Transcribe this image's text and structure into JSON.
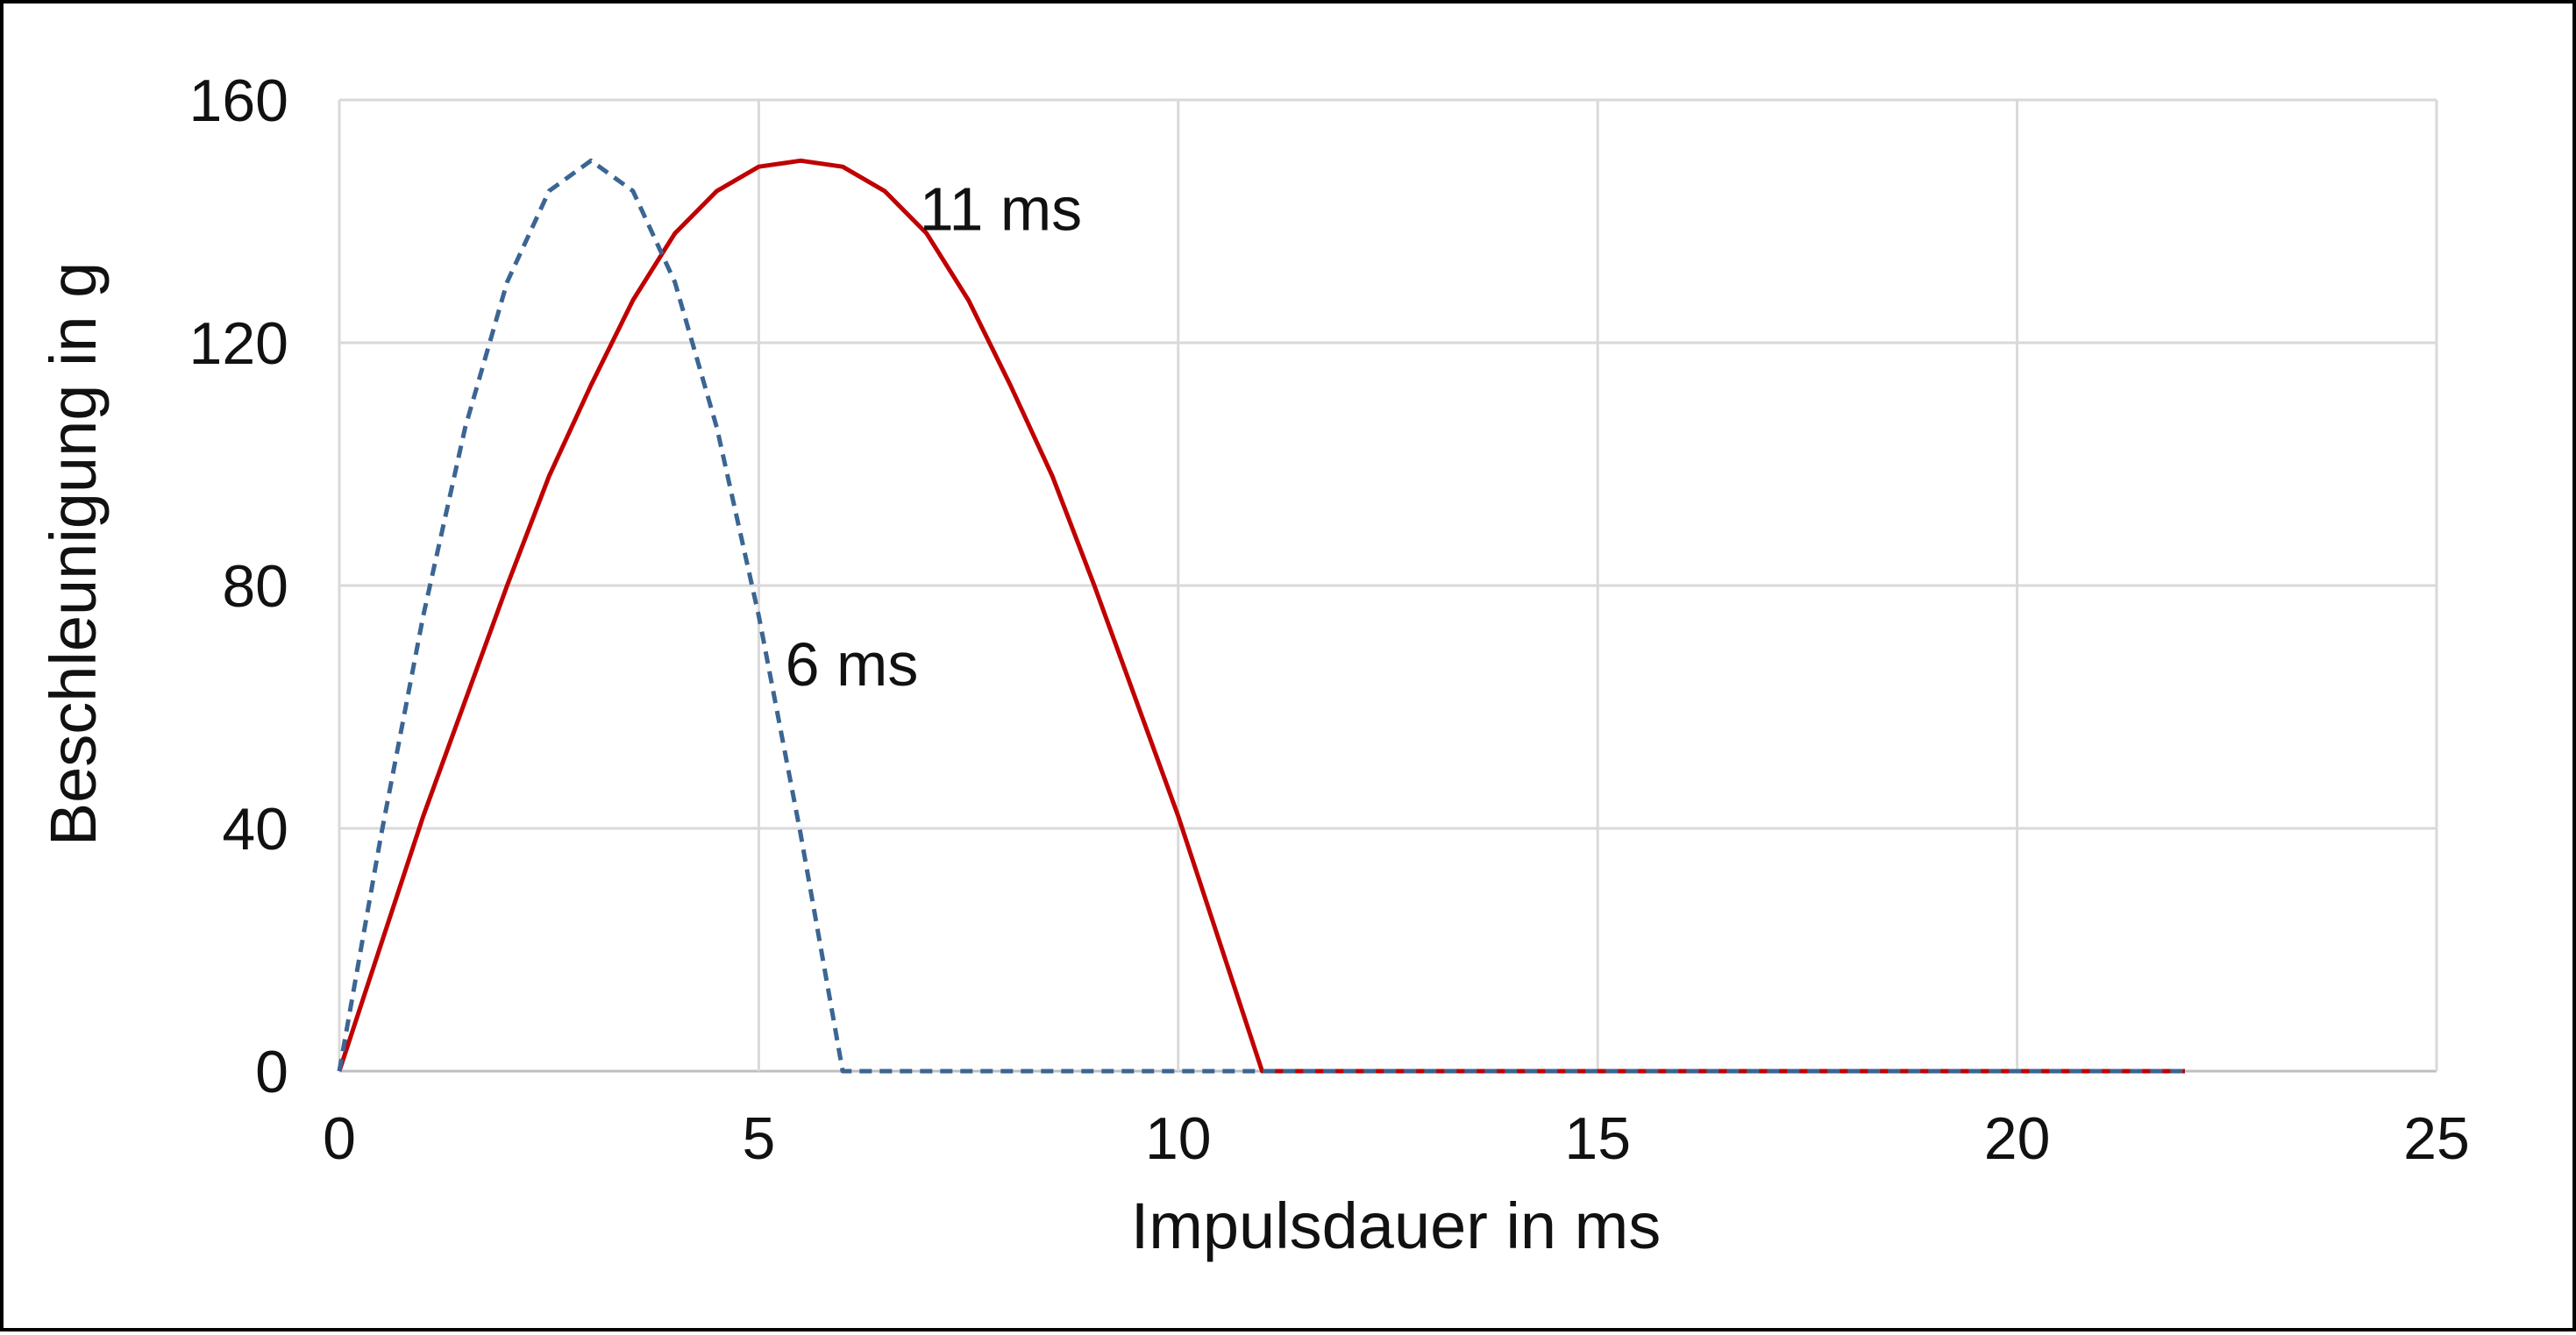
{
  "chart_data": {
    "type": "line",
    "title": "",
    "xlabel": "Impulsdauer in ms",
    "ylabel": "Beschleunigung in g",
    "xlim": [
      0,
      25
    ],
    "ylim": [
      0,
      160
    ],
    "xticks": [
      0,
      5,
      10,
      15,
      20,
      25
    ],
    "yticks": [
      0,
      40,
      80,
      120,
      160
    ],
    "grid": true,
    "legend": "none",
    "series": [
      {
        "color": "#c00000",
        "dash": "solid",
        "x": [
          0,
          0.5,
          1,
          1.5,
          2,
          2.5,
          3,
          3.5,
          4,
          4.5,
          5,
          5.5,
          6,
          6.5,
          7,
          7.5,
          8,
          8.5,
          9,
          9.5,
          10,
          10.5,
          11,
          22
        ],
        "y": [
          0,
          21,
          42,
          61,
          80,
          98,
          113,
          127,
          138,
          145,
          149,
          150,
          149,
          145,
          138,
          127,
          113,
          98,
          80,
          61,
          42,
          21,
          0,
          0
        ]
      },
      {
        "color": "#3b6593",
        "dash": "dashed",
        "x": [
          0,
          0.5,
          1,
          1.5,
          2,
          2.5,
          3,
          3.5,
          4,
          4.5,
          5,
          5.5,
          6,
          22
        ],
        "y": [
          0,
          39,
          75,
          106,
          130,
          145,
          150,
          145,
          130,
          106,
          75,
          39,
          0,
          0
        ]
      }
    ],
    "annotations": [
      {
        "text": "11 ms",
        "x": 7.0,
        "y": 142
      },
      {
        "text": "6 ms",
        "x": 5.4,
        "y": 67
      }
    ]
  }
}
